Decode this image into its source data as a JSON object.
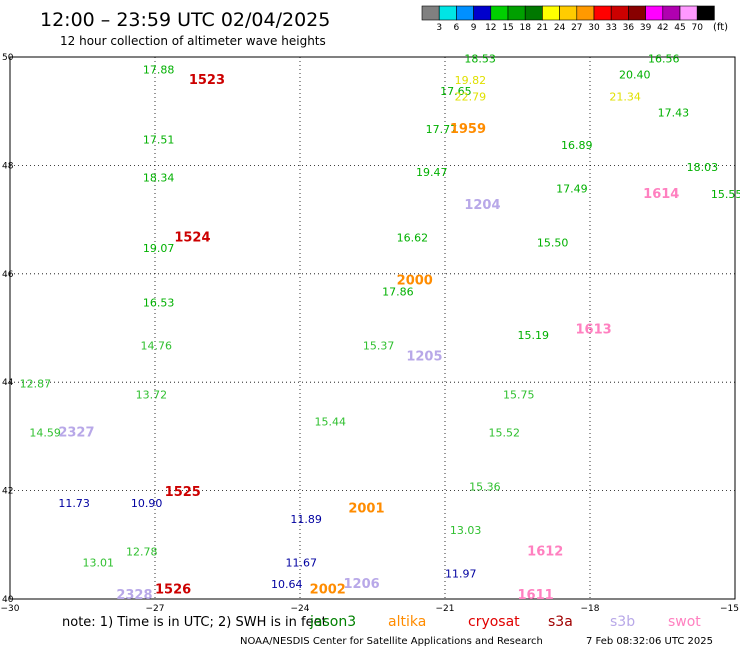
{
  "title": "12:00 – 23:59 UTC 02/04/2025",
  "subtitle": "12 hour collection of altimeter wave heights",
  "colorbar": {
    "unit": "(ft)",
    "ticks": [
      "3",
      "6",
      "9",
      "12",
      "15",
      "18",
      "21",
      "24",
      "27",
      "30",
      "33",
      "36",
      "39",
      "42",
      "45",
      "70"
    ],
    "colors": [
      "#808080",
      "#00e5e5",
      "#0090ff",
      "#0000cc",
      "#00d000",
      "#00a000",
      "#007800",
      "#ffff00",
      "#ffcc00",
      "#ff9900",
      "#ff0000",
      "#cc0000",
      "#880000",
      "#ff00ff",
      "#b000b0",
      "#ff99ff",
      "#000000"
    ]
  },
  "footer": {
    "note_prefix": "note:  1) Time is in UTC; 2) SWH is in feet",
    "satellites": [
      {
        "name": "jason3",
        "color": "#008000"
      },
      {
        "name": "altika",
        "color": "#ff8c00"
      },
      {
        "name": "cryosat",
        "color": "#e00000"
      },
      {
        "name": "s3a",
        "color": "#a00000"
      },
      {
        "name": "s3b",
        "color": "#b8a8e8"
      },
      {
        "name": "swot",
        "color": "#ff80c0"
      }
    ],
    "credit": "NOAA/NESDIS Center for Satellite Applications and Research",
    "timestamp": "7 Feb 08:32:06 UTC 2025"
  },
  "chart_data": {
    "type": "scatter",
    "xlim": [
      -30,
      -15
    ],
    "ylim": [
      40,
      50
    ],
    "xticks": [
      "−30",
      "−27",
      "−24",
      "−21",
      "−18",
      "−15"
    ],
    "yticks": [
      "40",
      "42",
      "44",
      "46",
      "48",
      "50"
    ],
    "grid": true,
    "points": [
      {
        "lon": -27.25,
        "lat": 49.7,
        "v": "17.88",
        "c": "#00b000"
      },
      {
        "lon": -27.25,
        "lat": 48.4,
        "v": "17.51",
        "c": "#00b000"
      },
      {
        "lon": -27.25,
        "lat": 47.7,
        "v": "18.34",
        "c": "#00b000"
      },
      {
        "lon": -27.25,
        "lat": 46.4,
        "v": "19.07",
        "c": "#00b000"
      },
      {
        "lon": -27.25,
        "lat": 45.4,
        "v": "16.53",
        "c": "#00b000"
      },
      {
        "lon": -27.3,
        "lat": 44.6,
        "v": "14.76",
        "c": "#30c030"
      },
      {
        "lon": -27.4,
        "lat": 43.7,
        "v": "13.72",
        "c": "#30c030"
      },
      {
        "lon": -27.5,
        "lat": 41.7,
        "v": "10.90",
        "c": "#0000a0"
      },
      {
        "lon": -27.6,
        "lat": 40.8,
        "v": "12.78",
        "c": "#30c030"
      },
      {
        "lon": -29.8,
        "lat": 43.9,
        "v": "12.87",
        "c": "#30c030"
      },
      {
        "lon": -29.6,
        "lat": 43.0,
        "v": "14.59",
        "c": "#30c030"
      },
      {
        "lon": -29.0,
        "lat": 41.7,
        "v": "11.73",
        "c": "#0000a0"
      },
      {
        "lon": -28.5,
        "lat": 40.6,
        "v": "13.01",
        "c": "#30c030"
      },
      {
        "lon": -24.2,
        "lat": 41.4,
        "v": "11.89",
        "c": "#0000a0"
      },
      {
        "lon": -24.3,
        "lat": 40.6,
        "v": "11.67",
        "c": "#0000a0"
      },
      {
        "lon": -24.6,
        "lat": 40.2,
        "v": "10.64",
        "c": "#0000a0"
      },
      {
        "lon": -23.7,
        "lat": 43.2,
        "v": "15.44",
        "c": "#30c030"
      },
      {
        "lon": -22.7,
        "lat": 44.6,
        "v": "15.37",
        "c": "#30c030"
      },
      {
        "lon": -22.3,
        "lat": 45.6,
        "v": "17.86",
        "c": "#00b000"
      },
      {
        "lon": -22.0,
        "lat": 46.6,
        "v": "16.62",
        "c": "#00b000"
      },
      {
        "lon": -21.6,
        "lat": 47.8,
        "v": "19.47",
        "c": "#00b000"
      },
      {
        "lon": -21.4,
        "lat": 48.6,
        "v": "17.77",
        "c": "#00b000"
      },
      {
        "lon": -21.1,
        "lat": 49.3,
        "v": "17.65",
        "c": "#00b000"
      },
      {
        "lon": -20.6,
        "lat": 49.9,
        "v": "18.53",
        "c": "#00b000"
      },
      {
        "lon": -20.8,
        "lat": 49.5,
        "v": "19.82",
        "c": "#e0e000"
      },
      {
        "lon": -20.8,
        "lat": 49.2,
        "v": "22.79",
        "c": "#e0e000"
      },
      {
        "lon": -18.6,
        "lat": 48.3,
        "v": "16.89",
        "c": "#00b000"
      },
      {
        "lon": -18.7,
        "lat": 47.5,
        "v": "17.49",
        "c": "#00b000"
      },
      {
        "lon": -19.1,
        "lat": 46.5,
        "v": "15.50",
        "c": "#00b000"
      },
      {
        "lon": -19.5,
        "lat": 44.8,
        "v": "15.19",
        "c": "#00b000"
      },
      {
        "lon": -19.8,
        "lat": 43.7,
        "v": "15.75",
        "c": "#30c030"
      },
      {
        "lon": -20.1,
        "lat": 43.0,
        "v": "15.52",
        "c": "#30c030"
      },
      {
        "lon": -20.5,
        "lat": 42.0,
        "v": "15.36",
        "c": "#30c030"
      },
      {
        "lon": -20.9,
        "lat": 41.2,
        "v": "13.03",
        "c": "#30c030"
      },
      {
        "lon": -21.0,
        "lat": 40.4,
        "v": "11.97",
        "c": "#0000a0"
      },
      {
        "lon": -17.4,
        "lat": 49.6,
        "v": "20.40",
        "c": "#00b000"
      },
      {
        "lon": -17.6,
        "lat": 49.2,
        "v": "21.34",
        "c": "#e0e000"
      },
      {
        "lon": -16.8,
        "lat": 49.9,
        "v": "16.56",
        "c": "#00b000"
      },
      {
        "lon": -16.6,
        "lat": 48.9,
        "v": "17.43",
        "c": "#00b000"
      },
      {
        "lon": -16.0,
        "lat": 47.9,
        "v": "18.03",
        "c": "#00b000"
      },
      {
        "lon": -15.5,
        "lat": 47.4,
        "v": "15.55",
        "c": "#00b000"
      }
    ],
    "track_labels": [
      {
        "lon": -26.3,
        "lat": 49.5,
        "text": "1523",
        "c": "#cc0000"
      },
      {
        "lon": -26.6,
        "lat": 46.6,
        "text": "1524",
        "c": "#cc0000"
      },
      {
        "lon": -26.8,
        "lat": 41.9,
        "text": "1525",
        "c": "#cc0000"
      },
      {
        "lon": -27.0,
        "lat": 40.1,
        "text": "1526",
        "c": "#cc0000"
      },
      {
        "lon": -29.0,
        "lat": 43.0,
        "text": "2327",
        "c": "#b8a8e8"
      },
      {
        "lon": -27.8,
        "lat": 40.0,
        "text": "2328",
        "c": "#b8a8e8"
      },
      {
        "lon": -20.9,
        "lat": 48.6,
        "text": "1959",
        "c": "#ff8c00"
      },
      {
        "lon": -22.0,
        "lat": 45.8,
        "text": "2000",
        "c": "#ff8c00"
      },
      {
        "lon": -23.0,
        "lat": 41.6,
        "text": "2001",
        "c": "#ff8c00"
      },
      {
        "lon": -23.8,
        "lat": 40.1,
        "text": "2002",
        "c": "#ff8c00"
      },
      {
        "lon": -20.6,
        "lat": 47.2,
        "text": "1204",
        "c": "#b8a8e8"
      },
      {
        "lon": -21.8,
        "lat": 44.4,
        "text": "1205",
        "c": "#b8a8e8"
      },
      {
        "lon": -23.1,
        "lat": 40.2,
        "text": "1206",
        "c": "#b8a8e8"
      },
      {
        "lon": -16.9,
        "lat": 47.4,
        "text": "1614",
        "c": "#ff80c0"
      },
      {
        "lon": -18.3,
        "lat": 44.9,
        "text": "1613",
        "c": "#ff80c0"
      },
      {
        "lon": -19.3,
        "lat": 40.8,
        "text": "1612",
        "c": "#ff80c0"
      },
      {
        "lon": -19.5,
        "lat": 40.0,
        "text": "1611",
        "c": "#ff80c0"
      }
    ]
  }
}
